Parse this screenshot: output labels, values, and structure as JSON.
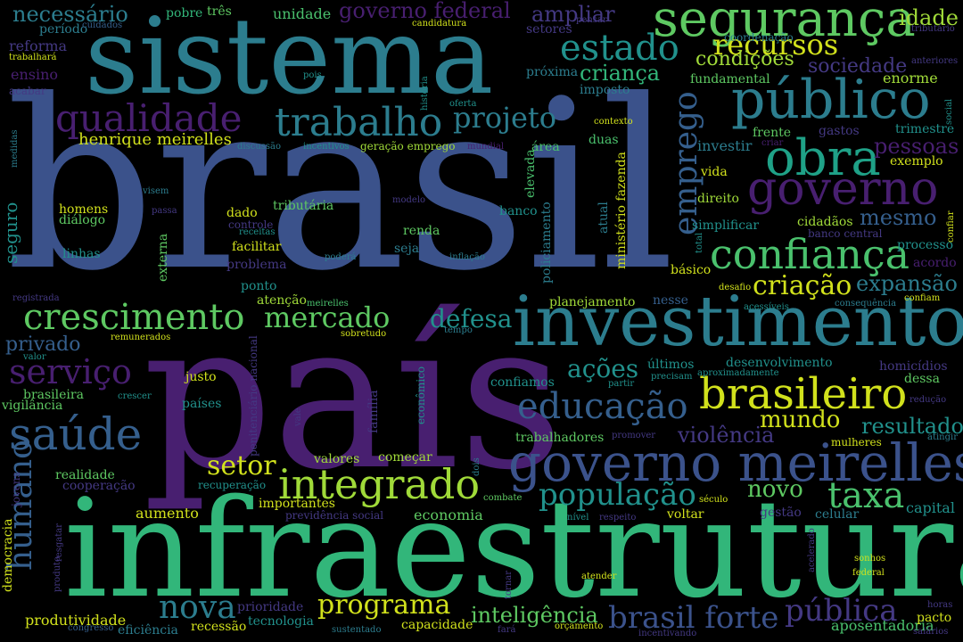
{
  "words": [
    {
      "id": "brasil",
      "text": "brasil",
      "color": "#3b528b"
    },
    {
      "id": "infraestrutura",
      "text": "infraestrutura",
      "color": "#32b67a"
    },
    {
      "id": "pais",
      "text": "país",
      "color": "#481f70"
    },
    {
      "id": "sistema",
      "text": "sistema",
      "color": "#2c7d8e"
    },
    {
      "id": "investimento",
      "text": "investimento",
      "color": "#2c7d8e"
    },
    {
      "id": "governo-meirelles",
      "text": "governo meirelles",
      "color": "#3b528b"
    },
    {
      "id": "publico",
      "text": "público",
      "color": "#2c7d8e"
    },
    {
      "id": "seguranca",
      "text": "segurança",
      "color": "#5ec962"
    },
    {
      "id": "obra",
      "text": "obra",
      "color": "#1fa187"
    },
    {
      "id": "governo",
      "text": "governo",
      "color": "#481f70"
    },
    {
      "id": "brasileiro",
      "text": "brasileiro",
      "color": "#d1e11c"
    },
    {
      "id": "confianca",
      "text": "confiança",
      "color": "#4ac16d"
    },
    {
      "id": "integrado",
      "text": "integrado",
      "color": "#a0da39"
    },
    {
      "id": "saude",
      "text": "saúde",
      "color": "#355f8d"
    },
    {
      "id": "qualidade",
      "text": "qualidade",
      "color": "#481f70"
    },
    {
      "id": "trabalho",
      "text": "trabalho",
      "color": "#2c7d8e"
    },
    {
      "id": "crescimento",
      "text": "crescimento",
      "color": "#5ec962"
    },
    {
      "id": "educacao",
      "text": "educação",
      "color": "#355f8d"
    },
    {
      "id": "brasil-forte",
      "text": "brasil forte",
      "color": "#3b528b"
    },
    {
      "id": "populacao",
      "text": "população",
      "color": "#21918c"
    },
    {
      "id": "taxa",
      "text": "taxa",
      "color": "#4ac16d"
    },
    {
      "id": "estado",
      "text": "estado",
      "color": "#21918c"
    },
    {
      "id": "recursos",
      "text": "recursos",
      "color": "#d1e11c"
    },
    {
      "id": "emprego",
      "text": "emprego",
      "color": "#355f8d"
    },
    {
      "id": "humano",
      "text": "humano",
      "color": "#355f8d"
    },
    {
      "id": "servico",
      "text": "serviço",
      "color": "#481f70"
    },
    {
      "id": "nova",
      "text": "nova",
      "color": "#2c7d8e"
    },
    {
      "id": "programa",
      "text": "programa",
      "color": "#d1e11c"
    },
    {
      "id": "publica",
      "text": "pública",
      "color": "#443983"
    },
    {
      "id": "mercado",
      "text": "mercado",
      "color": "#5ec962"
    },
    {
      "id": "setor",
      "text": "setor",
      "color": "#d1e11c"
    },
    {
      "id": "projeto",
      "text": "projeto",
      "color": "#2c7d8e"
    },
    {
      "id": "criacao",
      "text": "criação",
      "color": "#d1e11c"
    },
    {
      "id": "expansao",
      "text": "expansão",
      "color": "#2c7d8e"
    },
    {
      "id": "resultado",
      "text": "resultado",
      "color": "#21918c"
    },
    {
      "id": "mundo",
      "text": "mundo",
      "color": "#d1e11c"
    },
    {
      "id": "violencia",
      "text": "violência",
      "color": "#443983"
    },
    {
      "id": "novo",
      "text": "novo",
      "color": "#5ec962"
    },
    {
      "id": "defesa",
      "text": "defesa",
      "color": "#21918c"
    },
    {
      "id": "acoes",
      "text": "ações",
      "color": "#21918c"
    },
    {
      "id": "inteligencia",
      "text": "inteligência",
      "color": "#5ec962"
    },
    {
      "id": "condicoes",
      "text": "condições",
      "color": "#a0da39"
    },
    {
      "id": "sociedade",
      "text": "sociedade",
      "color": "#443983"
    },
    {
      "id": "crianca",
      "text": "criança",
      "color": "#32b67a"
    },
    {
      "id": "governo-federal",
      "text": "governo federal",
      "color": "#481f70"
    },
    {
      "id": "necessario",
      "text": "necessário",
      "color": "#2c7d8e"
    },
    {
      "id": "ampliar",
      "text": "ampliar",
      "color": "#443983"
    },
    {
      "id": "idade",
      "text": "idade",
      "color": "#a0da39"
    },
    {
      "id": "pessoas",
      "text": "pessoas",
      "color": "#481f70"
    },
    {
      "id": "mesmo",
      "text": "mesmo",
      "color": "#355f8d"
    },
    {
      "id": "privado",
      "text": "privado",
      "color": "#355f8d"
    },
    {
      "id": "henrique-meirelles",
      "text": "henrique meirelles",
      "color": "#d1e11c"
    },
    {
      "id": "seguro",
      "text": "seguro",
      "color": "#21918c"
    },
    {
      "id": "economia",
      "text": "economia",
      "color": "#5ec962"
    },
    {
      "id": "aumento",
      "text": "aumento",
      "color": "#d1e11c"
    },
    {
      "id": "produtividade",
      "text": "produtividade",
      "color": "#d1e11c"
    },
    {
      "id": "capital",
      "text": "capital",
      "color": "#21918c"
    },
    {
      "id": "aposentadoria",
      "text": "aposentadoria",
      "color": "#4ac16d"
    },
    {
      "id": "pobre",
      "text": "pobre",
      "color": "#32b67a"
    },
    {
      "id": "tres",
      "text": "três",
      "color": "#5ec962"
    },
    {
      "id": "unidade",
      "text": "unidade",
      "color": "#4ac16d"
    },
    {
      "id": "periodo",
      "text": "período",
      "color": "#2c7d8e"
    },
    {
      "id": "reforma",
      "text": "reforma",
      "color": "#443983"
    },
    {
      "id": "ensino",
      "text": "ensino",
      "color": "#481f70"
    },
    {
      "id": "setores",
      "text": "setores",
      "color": "#443983"
    },
    {
      "id": "proxima",
      "text": "próxima",
      "color": "#2c7d8e"
    },
    {
      "id": "imposto",
      "text": "imposto",
      "color": "#2c7d8e"
    },
    {
      "id": "fundamental",
      "text": "fundamental",
      "color": "#5ec962"
    },
    {
      "id": "coordenacao",
      "text": "coordenação",
      "color": "#2c7d8e"
    },
    {
      "id": "enorme",
      "text": "enorme",
      "color": "#a0da39"
    },
    {
      "id": "anteriores",
      "text": "anteriores",
      "color": "#443983"
    },
    {
      "id": "tributario",
      "text": "tributário",
      "color": "#443983"
    },
    {
      "id": "candidatura",
      "text": "candidatura",
      "color": "#d1e11c"
    },
    {
      "id": "cuidados",
      "text": "cuidados",
      "color": "#355f8d"
    },
    {
      "id": "trabalhara",
      "text": "trabalhará",
      "color": "#d1e11c"
    },
    {
      "id": "acabar",
      "text": "acabar",
      "color": "#443983"
    },
    {
      "id": "frente",
      "text": "frente",
      "color": "#5ec962"
    },
    {
      "id": "gastos",
      "text": "gastos",
      "color": "#443983"
    },
    {
      "id": "trimestre",
      "text": "trimestre",
      "color": "#21918c"
    },
    {
      "id": "exemplo",
      "text": "exemplo",
      "color": "#d1e11c"
    },
    {
      "id": "investir",
      "text": "investir",
      "color": "#2c7d8e"
    },
    {
      "id": "duas",
      "text": "duas",
      "color": "#4ac16d"
    },
    {
      "id": "area",
      "text": "área",
      "color": "#4ac16d"
    },
    {
      "id": "vida",
      "text": "vida",
      "color": "#d1e11c"
    },
    {
      "id": "direito",
      "text": "direito",
      "color": "#a0da39"
    },
    {
      "id": "simplificar",
      "text": "simplificar",
      "color": "#21918c"
    },
    {
      "id": "cidadaos",
      "text": "cidadãos",
      "color": "#a0da39"
    },
    {
      "id": "banco-central",
      "text": "banco central",
      "color": "#443983"
    },
    {
      "id": "processo",
      "text": "processo",
      "color": "#21918c"
    },
    {
      "id": "acordo",
      "text": "acordo",
      "color": "#481f70"
    },
    {
      "id": "basico",
      "text": "básico",
      "color": "#d1e11c"
    },
    {
      "id": "desafio",
      "text": "desafio",
      "color": "#d1e11c"
    },
    {
      "id": "planejamento",
      "text": "planejamento",
      "color": "#a0da39"
    },
    {
      "id": "nesse",
      "text": "nesse",
      "color": "#355f8d"
    },
    {
      "id": "acessiveis",
      "text": "acessíveis",
      "color": "#21918c"
    },
    {
      "id": "consequencia",
      "text": "consequência",
      "color": "#2c7d8e"
    },
    {
      "id": "confiam",
      "text": "confiam",
      "color": "#d1e11c"
    },
    {
      "id": "desenvolvimento",
      "text": "desenvolvimento",
      "color": "#21918c"
    },
    {
      "id": "homicidios",
      "text": "homicídios",
      "color": "#443983"
    },
    {
      "id": "dessa",
      "text": "dessa",
      "color": "#5ec962"
    },
    {
      "id": "ultimos",
      "text": "últimos",
      "color": "#21918c"
    },
    {
      "id": "precisam",
      "text": "precisam",
      "color": "#21918c"
    },
    {
      "id": "aproximadamente",
      "text": "aproximadamente",
      "color": "#21918c"
    },
    {
      "id": "partir",
      "text": "partir",
      "color": "#21918c"
    },
    {
      "id": "confiamos",
      "text": "confiamos",
      "color": "#21918c"
    },
    {
      "id": "reducao",
      "text": "redução",
      "color": "#443983"
    },
    {
      "id": "atingir",
      "text": "atingir",
      "color": "#2c7d8e"
    },
    {
      "id": "mulheres",
      "text": "mulheres",
      "color": "#d1e11c"
    },
    {
      "id": "trabalhadores",
      "text": "trabalhadores",
      "color": "#5ec962"
    },
    {
      "id": "promover",
      "text": "promover",
      "color": "#443983"
    },
    {
      "id": "comecar",
      "text": "começar",
      "color": "#a0da39"
    },
    {
      "id": "valores",
      "text": "valores",
      "color": "#a0da39"
    },
    {
      "id": "combate",
      "text": "combate",
      "color": "#5ec962"
    },
    {
      "id": "seculo",
      "text": "século",
      "color": "#d1e11c"
    },
    {
      "id": "gestao",
      "text": "gestão",
      "color": "#443983"
    },
    {
      "id": "celular",
      "text": "celular",
      "color": "#2c7d8e"
    },
    {
      "id": "voltar",
      "text": "voltar",
      "color": "#d1e11c"
    },
    {
      "id": "nivel",
      "text": "nível",
      "color": "#21918c"
    },
    {
      "id": "respeito",
      "text": "respeito",
      "color": "#443983"
    },
    {
      "id": "atender",
      "text": "atender",
      "color": "#d1e11c"
    },
    {
      "id": "sonhos",
      "text": "sonhos",
      "color": "#d1e11c"
    },
    {
      "id": "federal",
      "text": "federal",
      "color": "#d1e11c"
    },
    {
      "id": "salarios",
      "text": "salários",
      "color": "#443983"
    },
    {
      "id": "horas",
      "text": "horas",
      "color": "#443983"
    },
    {
      "id": "pacto",
      "text": "pacto",
      "color": "#d1e11c"
    },
    {
      "id": "incentivando",
      "text": "incentivando",
      "color": "#443983"
    },
    {
      "id": "orcamento",
      "text": "orçamento",
      "color": "#d1e11c"
    },
    {
      "id": "capacidade",
      "text": "capacidade",
      "color": "#d1e11c"
    },
    {
      "id": "sustentado",
      "text": "sustentado",
      "color": "#2c7d8e"
    },
    {
      "id": "fara",
      "text": "fará",
      "color": "#443983"
    },
    {
      "id": "recessao",
      "text": "recessão",
      "color": "#d1e11c"
    },
    {
      "id": "tecnologia",
      "text": "tecnologia",
      "color": "#21918c"
    },
    {
      "id": "prioridade",
      "text": "prioridade",
      "color": "#443983"
    },
    {
      "id": "eficiencia",
      "text": "eficiência",
      "color": "#2c7d8e"
    },
    {
      "id": "congresso",
      "text": "congresso",
      "color": "#355f8d"
    },
    {
      "id": "importantes",
      "text": "importantes",
      "color": "#d1e11c"
    },
    {
      "id": "previdencia-social",
      "text": "previdência social",
      "color": "#443983"
    },
    {
      "id": "recuperacao",
      "text": "recuperação",
      "color": "#21918c"
    },
    {
      "id": "realidade",
      "text": "realidade",
      "color": "#5ec962"
    },
    {
      "id": "cooperacao",
      "text": "cooperação",
      "color": "#443983"
    },
    {
      "id": "jovens",
      "text": "jovens",
      "color": "#443983"
    },
    {
      "id": "democracia",
      "text": "democracia",
      "color": "#d1e11c"
    },
    {
      "id": "produto",
      "text": "produto",
      "color": "#443983"
    },
    {
      "id": "resgatar",
      "text": "resgatar",
      "color": "#443983"
    },
    {
      "id": "justo",
      "text": "justo",
      "color": "#d1e11c"
    },
    {
      "id": "paises",
      "text": "países",
      "color": "#21918c"
    },
    {
      "id": "crescer",
      "text": "crescer",
      "color": "#21918c"
    },
    {
      "id": "brasileira",
      "text": "brasileira",
      "color": "#5ec962"
    },
    {
      "id": "vigilancia",
      "text": "vigilância",
      "color": "#5ec962"
    },
    {
      "id": "valor",
      "text": "valor",
      "color": "#21918c"
    },
    {
      "id": "remunerados",
      "text": "remunerados",
      "color": "#d1e11c"
    },
    {
      "id": "registrada",
      "text": "registrada",
      "color": "#443983"
    },
    {
      "id": "atencao",
      "text": "atenção",
      "color": "#a0da39"
    },
    {
      "id": "meirelles",
      "text": "meirelles",
      "color": "#4ac16d"
    },
    {
      "id": "sobretudo",
      "text": "sobretudo",
      "color": "#d1e11c"
    },
    {
      "id": "tempo",
      "text": "tempo",
      "color": "#2c7d8e"
    },
    {
      "id": "ponto",
      "text": "ponto",
      "color": "#21918c"
    },
    {
      "id": "problema",
      "text": "problema",
      "color": "#443983"
    },
    {
      "id": "facilitar",
      "text": "facilitar",
      "color": "#d1e11c"
    },
    {
      "id": "controle",
      "text": "controle",
      "color": "#443983"
    },
    {
      "id": "receitas",
      "text": "receitas",
      "color": "#21918c"
    },
    {
      "id": "dado",
      "text": "dado",
      "color": "#d1e11c"
    },
    {
      "id": "tributaria",
      "text": "tributária",
      "color": "#5ec962"
    },
    {
      "id": "renda",
      "text": "renda",
      "color": "#5ec962"
    },
    {
      "id": "seja",
      "text": "seja",
      "color": "#2c7d8e"
    },
    {
      "id": "inflacao",
      "text": "inflação",
      "color": "#2c7d8e"
    },
    {
      "id": "podera",
      "text": "poderá",
      "color": "#2c7d8e"
    },
    {
      "id": "modelo",
      "text": "modelo",
      "color": "#443983"
    },
    {
      "id": "banco",
      "text": "banco",
      "color": "#21918c"
    },
    {
      "id": "homens",
      "text": "homens",
      "color": "#d1e11c"
    },
    {
      "id": "dialogo",
      "text": "diálogo",
      "color": "#5ec962"
    },
    {
      "id": "linhas",
      "text": "linhas",
      "color": "#21918c"
    },
    {
      "id": "visem",
      "text": "visem",
      "color": "#2c7d8e"
    },
    {
      "id": "passa",
      "text": "passa",
      "color": "#443983"
    },
    {
      "id": "discussao",
      "text": "discussão",
      "color": "#2c7d8e"
    },
    {
      "id": "incentivos",
      "text": "incentivos",
      "color": "#21918c"
    },
    {
      "id": "geracao-emprego",
      "text": "geração emprego",
      "color": "#a0da39"
    },
    {
      "id": "mundial",
      "text": "mundial",
      "color": "#481f70"
    },
    {
      "id": "medidas",
      "text": "medidas",
      "color": "#2c7d8e"
    },
    {
      "id": "pois",
      "text": "pois",
      "color": "#21918c"
    },
    {
      "id": "oferta",
      "text": "oferta",
      "color": "#21918c"
    },
    {
      "id": "historia",
      "text": "história",
      "color": "#21918c"
    },
    {
      "id": "pensar",
      "text": "pensar",
      "color": "#443983"
    },
    {
      "id": "contexto",
      "text": "contexto",
      "color": "#d1e11c"
    },
    {
      "id": "criar",
      "text": "criar",
      "color": "#481f70"
    },
    {
      "id": "social",
      "text": "social",
      "color": "#21918c"
    },
    {
      "id": "confiar",
      "text": "confiar",
      "color": "#d1e11c"
    },
    {
      "id": "total",
      "text": "total",
      "color": "#21918c"
    },
    {
      "id": "elevada",
      "text": "elevada",
      "color": "#4ac16d"
    },
    {
      "id": "policiamento",
      "text": "policiamento",
      "color": "#2c7d8e"
    },
    {
      "id": "ministerio-fazenda",
      "text": "ministério fazenda",
      "color": "#d1e11c"
    },
    {
      "id": "atual",
      "text": "atual",
      "color": "#2c7d8e"
    },
    {
      "id": "externa",
      "text": "externa",
      "color": "#5ec962"
    },
    {
      "id": "penitenciario-nacional",
      "text": "penitenciário nacional",
      "color": "#443983"
    },
    {
      "id": "vale",
      "text": "vale",
      "color": "#443983"
    },
    {
      "id": "familia",
      "text": "família",
      "color": "#443983"
    },
    {
      "id": "economico",
      "text": "econômico",
      "color": "#21918c"
    },
    {
      "id": "dois",
      "text": "dois",
      "color": "#2c7d8e"
    },
    {
      "id": "tornar",
      "text": "tornar",
      "color": "#443983"
    },
    {
      "id": "acelerado",
      "text": "acelerado",
      "color": "#443983"
    }
  ]
}
